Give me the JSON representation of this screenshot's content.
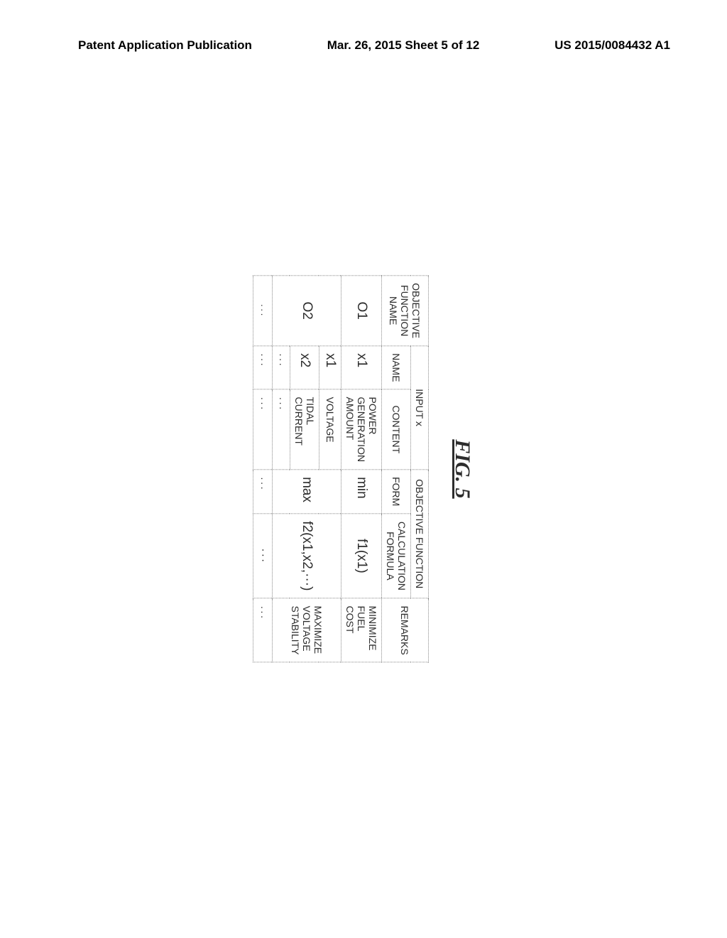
{
  "header": {
    "left": "Patent Application Publication",
    "center": "Mar. 26, 2015  Sheet 5 of 12",
    "right": "US 2015/0084432 A1"
  },
  "figure": {
    "label": "FIG. 5",
    "columns": {
      "objname": "OBJECTIVE FUNCTION NAME",
      "inputx": "INPUT x",
      "name": "NAME",
      "content": "CONTENT",
      "objfunc": "OBJECTIVE FUNCTION",
      "form": "FORM",
      "formula": "CALCULATION FORMULA",
      "remarks": "REMARKS"
    },
    "rows": {
      "o1": {
        "objname": "O1",
        "name": "x1",
        "content": "POWER GENERATION AMOUNT",
        "form": "min",
        "formula": "f1(x1)",
        "remarks": "MINIMIZE FUEL COST"
      },
      "o2a": {
        "objname": "O2",
        "name": "x1",
        "content": "VOLTAGE",
        "form": "max",
        "formula": "f2(x1,x2,···)",
        "remarks": "MAXIMIZE VOLTAGE STABILITY"
      },
      "o2b": {
        "name": "x2",
        "content": "TIDAL CURRENT"
      },
      "o2c": {
        "name": "···",
        "content": "···"
      },
      "last": {
        "objname": "···",
        "name": "···",
        "content": "···",
        "form": "···",
        "formula": "···",
        "remarks": "···"
      }
    }
  }
}
